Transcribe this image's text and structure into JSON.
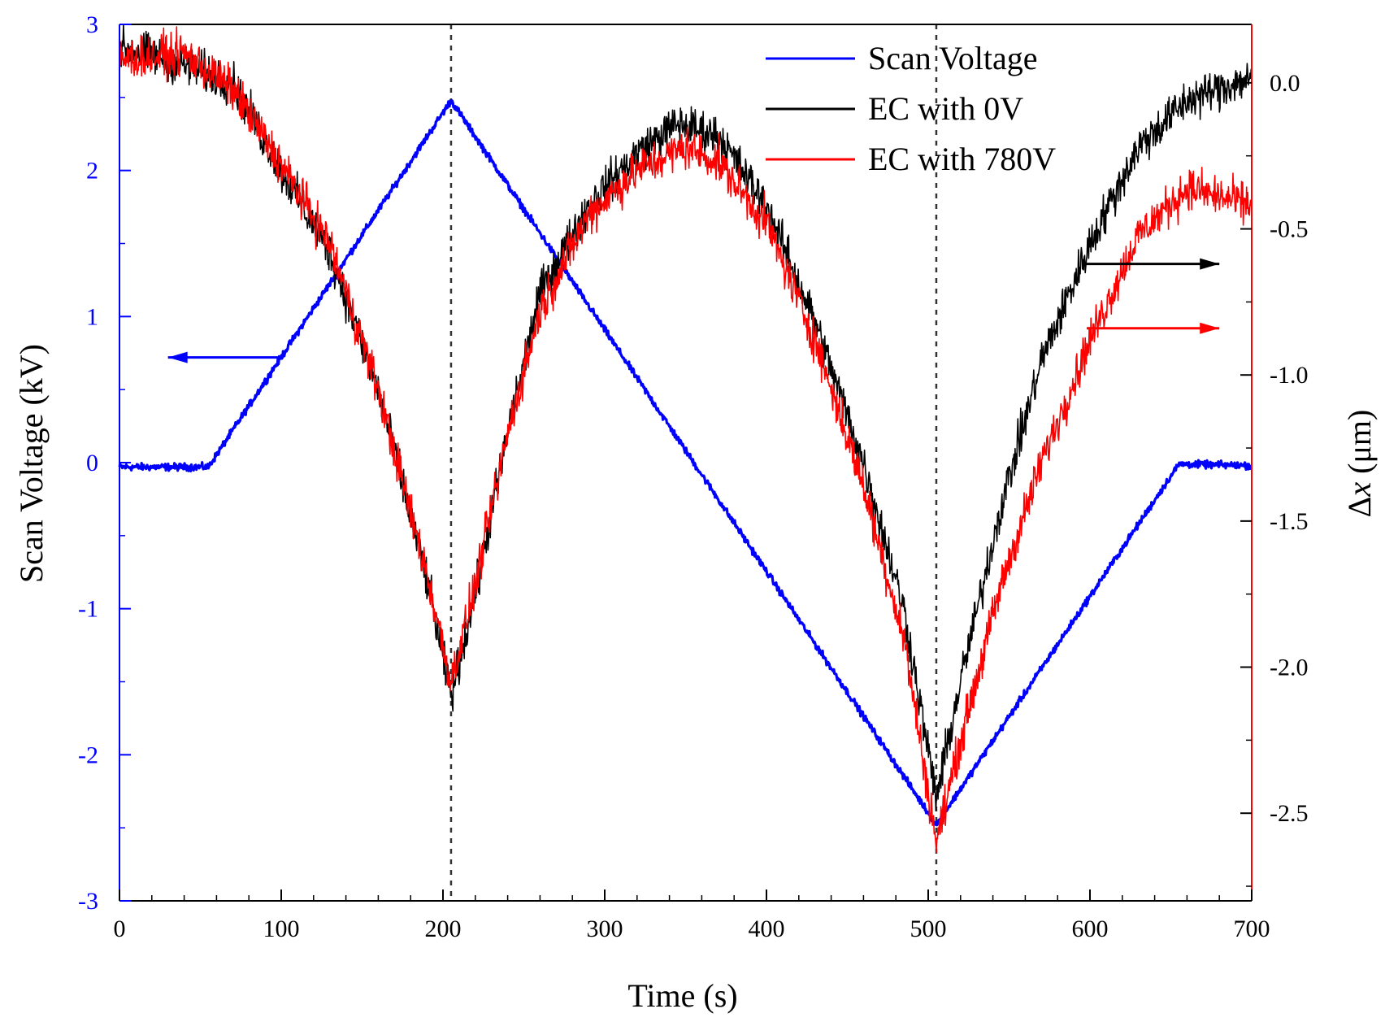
{
  "chart_data": {
    "type": "line",
    "title": "",
    "xlabel": "Time (s)",
    "ylabel_left": "Scan Voltage (kV)",
    "ylabel_right_prefix": "Δ",
    "ylabel_right_var": "x",
    "ylabel_right_suffix": " (μm)",
    "xlim": [
      0,
      700
    ],
    "ylim_left": [
      -3,
      3
    ],
    "ylim_right": [
      -2.8,
      0.2
    ],
    "x_ticks": [
      "0",
      "100",
      "200",
      "300",
      "400",
      "500",
      "600",
      "700"
    ],
    "y_left_ticks": [
      "-3",
      "-2",
      "-1",
      "0",
      "1",
      "2",
      "3"
    ],
    "y_right_ticks": [
      "0.0",
      "-0.5",
      "-1.0",
      "-1.5",
      "-2.0",
      "-2.5"
    ],
    "grid": false,
    "legend_position": "top-right",
    "vertical_reference_lines_x": [
      205,
      505
    ],
    "series": [
      {
        "name": "Scan Voltage",
        "axis": "left",
        "color": "#0000ff",
        "noise": 0.012,
        "points": [
          [
            0,
            -0.03
          ],
          [
            55,
            -0.03
          ],
          [
            205,
            2.48
          ],
          [
            505,
            -2.48
          ],
          [
            655,
            -0.01
          ],
          [
            700,
            -0.02
          ]
        ]
      },
      {
        "name": "EC with 0V",
        "axis": "right",
        "color": "#000000",
        "noise": 0.035,
        "points": [
          [
            0,
            0.12
          ],
          [
            30,
            0.08
          ],
          [
            70,
            0.0
          ],
          [
            100,
            -0.3
          ],
          [
            130,
            -0.58
          ],
          [
            160,
            -1.05
          ],
          [
            190,
            -1.7
          ],
          [
            205,
            -2.1
          ],
          [
            220,
            -1.75
          ],
          [
            240,
            -1.2
          ],
          [
            260,
            -0.72
          ],
          [
            290,
            -0.42
          ],
          [
            320,
            -0.24
          ],
          [
            345,
            -0.14
          ],
          [
            370,
            -0.18
          ],
          [
            400,
            -0.42
          ],
          [
            430,
            -0.82
          ],
          [
            460,
            -1.3
          ],
          [
            485,
            -1.8
          ],
          [
            505,
            -2.45
          ],
          [
            520,
            -2.05
          ],
          [
            545,
            -1.45
          ],
          [
            570,
            -0.95
          ],
          [
            600,
            -0.55
          ],
          [
            630,
            -0.22
          ],
          [
            660,
            -0.06
          ],
          [
            700,
            0.02
          ]
        ]
      },
      {
        "name": "EC with 780V",
        "axis": "right",
        "color": "#ff0000",
        "noise": 0.035,
        "points": [
          [
            0,
            0.08
          ],
          [
            40,
            0.1
          ],
          [
            70,
            -0.02
          ],
          [
            100,
            -0.28
          ],
          [
            130,
            -0.55
          ],
          [
            160,
            -1.05
          ],
          [
            190,
            -1.68
          ],
          [
            205,
            -2.05
          ],
          [
            220,
            -1.72
          ],
          [
            240,
            -1.2
          ],
          [
            260,
            -0.78
          ],
          [
            290,
            -0.45
          ],
          [
            320,
            -0.3
          ],
          [
            350,
            -0.22
          ],
          [
            370,
            -0.27
          ],
          [
            400,
            -0.48
          ],
          [
            430,
            -0.88
          ],
          [
            460,
            -1.38
          ],
          [
            485,
            -1.9
          ],
          [
            505,
            -2.6
          ],
          [
            520,
            -2.25
          ],
          [
            545,
            -1.72
          ],
          [
            570,
            -1.3
          ],
          [
            600,
            -0.88
          ],
          [
            630,
            -0.52
          ],
          [
            660,
            -0.36
          ],
          [
            700,
            -0.42
          ]
        ]
      }
    ],
    "arrows": [
      {
        "target": "Scan Voltage",
        "direction": "left",
        "color": "#0000ff",
        "x_range": [
          100,
          30
        ],
        "y_left": 0.72
      },
      {
        "target": "EC with 0V",
        "direction": "right",
        "color": "#000000",
        "x_range": [
          595,
          680
        ],
        "y_left": 1.36
      },
      {
        "target": "EC with 780V",
        "direction": "right",
        "color": "#ff0000",
        "x_range": [
          598,
          680
        ],
        "y_left": 0.92
      }
    ]
  }
}
